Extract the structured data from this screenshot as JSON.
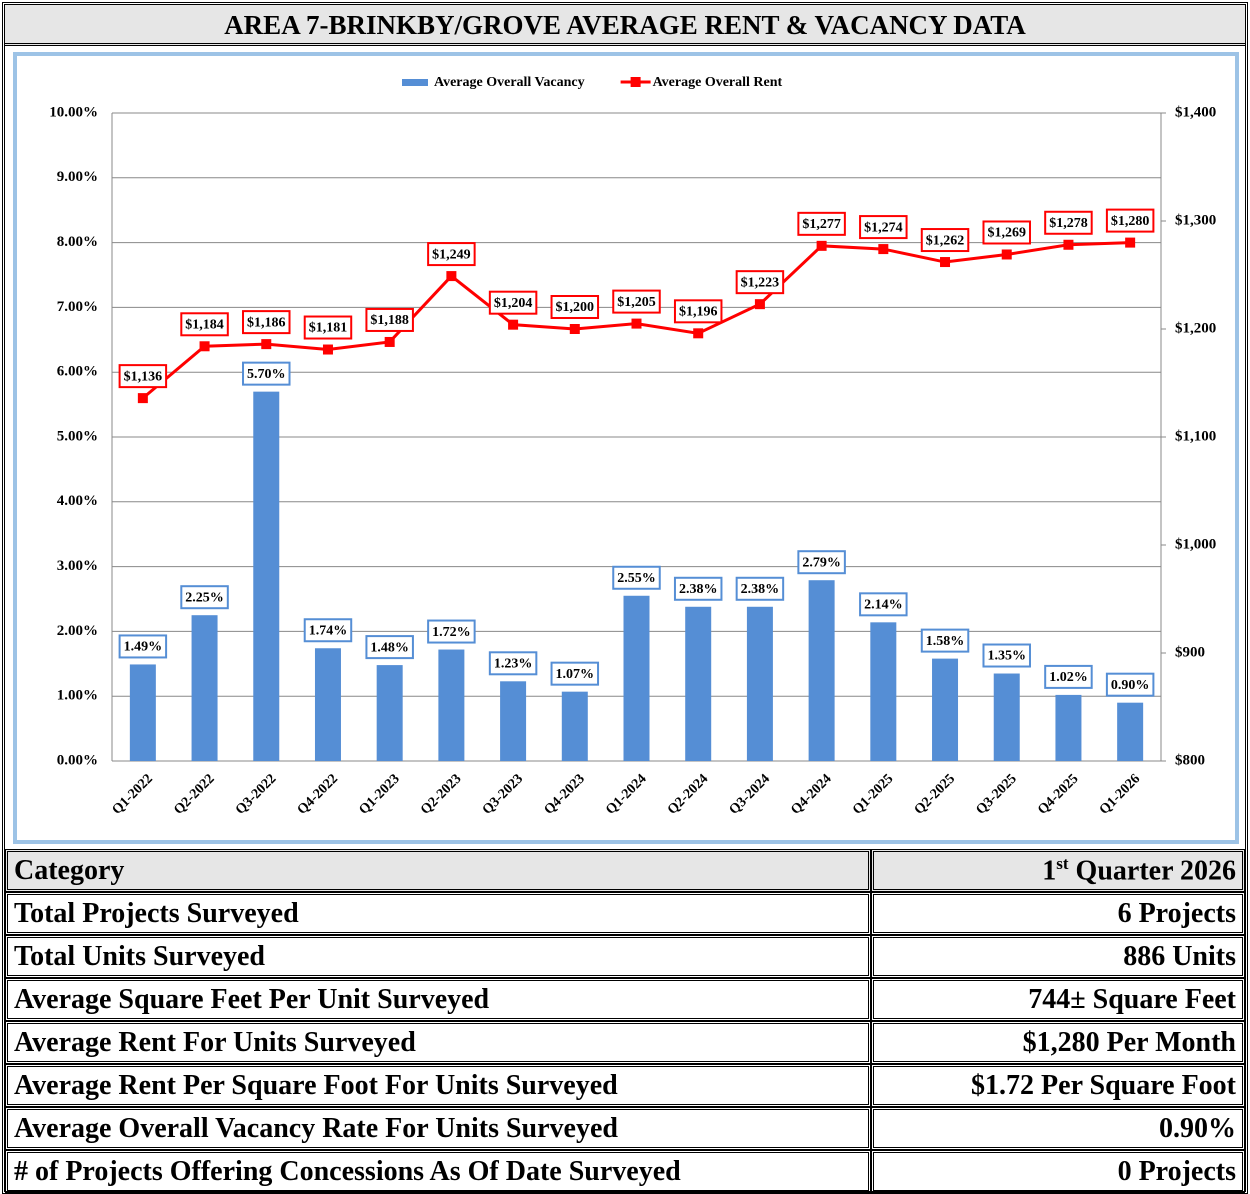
{
  "title": "AREA 7-BRINKBY/GROVE AVERAGE RENT & VACANCY DATA",
  "chart_data": {
    "type": "bar",
    "categories": [
      "Q1-2022",
      "Q2-2022",
      "Q3-2022",
      "Q4-2022",
      "Q1-2023",
      "Q2-2023",
      "Q3-2023",
      "Q4-2023",
      "Q1-2024",
      "Q2-2024",
      "Q3-2024",
      "Q4-2024",
      "Q1-2025",
      "Q2-2025",
      "Q3-2025",
      "Q4-2025",
      "Q1-2026"
    ],
    "series": [
      {
        "name": "Average Overall Vacancy",
        "type": "bar",
        "color": "#558ed5",
        "values": [
          1.49,
          2.25,
          5.7,
          1.74,
          1.48,
          1.72,
          1.23,
          1.07,
          2.55,
          2.38,
          2.38,
          2.79,
          2.14,
          1.58,
          1.35,
          1.02,
          0.9
        ],
        "value_labels": [
          "1.49%",
          "2.25%",
          "5.70%",
          "1.74%",
          "1.48%",
          "1.72%",
          "1.23%",
          "1.07%",
          "2.55%",
          "2.38%",
          "2.38%",
          "2.79%",
          "2.14%",
          "1.58%",
          "1.35%",
          "1.02%",
          "0.90%"
        ]
      },
      {
        "name": "Average Overall Rent",
        "type": "line",
        "axis": "y2",
        "color": "#ff0000",
        "values": [
          1136,
          1184,
          1186,
          1181,
          1188,
          1249,
          1204,
          1200,
          1205,
          1196,
          1223,
          1277,
          1274,
          1262,
          1269,
          1278,
          1280
        ],
        "value_labels": [
          "$1,136",
          "$1,184",
          "$1,186",
          "$1,181",
          "$1,188",
          "$1,249",
          "$1,204",
          "$1,200",
          "$1,205",
          "$1,196",
          "$1,223",
          "$1,277",
          "$1,274",
          "$1,262",
          "$1,269",
          "$1,278",
          "$1,280"
        ]
      }
    ],
    "ylim": [
      0,
      10
    ],
    "yticks": [
      {
        "value": 0,
        "label": "0.00%"
      },
      {
        "value": 1,
        "label": "1.00%"
      },
      {
        "value": 2,
        "label": "2.00%"
      },
      {
        "value": 3,
        "label": "3.00%"
      },
      {
        "value": 4,
        "label": "4.00%"
      },
      {
        "value": 5,
        "label": "5.00%"
      },
      {
        "value": 6,
        "label": "6.00%"
      },
      {
        "value": 7,
        "label": "7.00%"
      },
      {
        "value": 8,
        "label": "8.00%"
      },
      {
        "value": 9,
        "label": "9.00%"
      },
      {
        "value": 10,
        "label": "10.00%"
      }
    ],
    "y2lim": [
      800,
      1400
    ],
    "y2ticks": [
      {
        "value": 800,
        "label": "$800"
      },
      {
        "value": 900,
        "label": "$900"
      },
      {
        "value": 1000,
        "label": "$1,000"
      },
      {
        "value": 1100,
        "label": "$1,100"
      },
      {
        "value": 1200,
        "label": "$1,200"
      },
      {
        "value": 1300,
        "label": "$1,300"
      },
      {
        "value": 1400,
        "label": "$1,400"
      }
    ],
    "grid": true,
    "legend": "top"
  },
  "table": {
    "header": {
      "category": "Category",
      "quarter": [
        "1",
        "st",
        " Quarter 2026"
      ]
    },
    "rows": [
      [
        "Total Projects Surveyed",
        "6 Projects"
      ],
      [
        "Total Units Surveyed",
        "886 Units"
      ],
      [
        "Average Square Feet Per Unit Surveyed",
        "744± Square Feet"
      ],
      [
        "Average Rent For Units Surveyed",
        "$1,280 Per Month"
      ],
      [
        "Average Rent Per Square Foot For Units Surveyed",
        "$1.72 Per Square Foot"
      ],
      [
        "Average Overall Vacancy Rate For Units Surveyed",
        "0.90%"
      ],
      [
        "# of Projects Offering Concessions As Of Date Surveyed",
        "0 Projects"
      ]
    ]
  }
}
